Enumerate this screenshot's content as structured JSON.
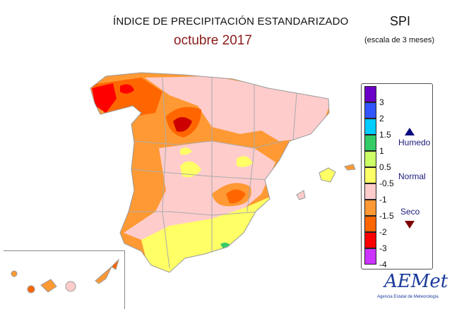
{
  "header": {
    "title": "ÍNDICE DE PRECIPITACIÓN ESTANDARIZADO",
    "subtitle": "octubre 2017",
    "index": "SPI",
    "scale_note": "(escala de 3 meses)"
  },
  "legend": {
    "classes": [
      {
        "range": ">3",
        "color": "#6a00c8"
      },
      {
        "range": "2 a 3",
        "color": "#3355ff"
      },
      {
        "range": "1.5 a 2",
        "color": "#00ccff"
      },
      {
        "range": "1 a 1.5",
        "color": "#33cc66"
      },
      {
        "range": "0.5 a 1",
        "color": "#ccff66"
      },
      {
        "range": "-0.5 a 0.5",
        "color": "#ffff66"
      },
      {
        "range": "-1 a -0.5",
        "color": "#ffcccc"
      },
      {
        "range": "-1.5 a -1",
        "color": "#ff9933"
      },
      {
        "range": "-2 a -1.5",
        "color": "#ff6600"
      },
      {
        "range": "-3 a -2",
        "color": "#ff0000"
      },
      {
        "range": "<-3",
        "color": "#cc33ff"
      }
    ],
    "ticks": [
      "3",
      "2",
      "1.5",
      "1",
      "0.5",
      "-0.5",
      "-1",
      "-1.5",
      "-2",
      "-3",
      "-4"
    ],
    "humid_label": "Humedo",
    "normal_label": "Normal",
    "dry_label": "Seco"
  },
  "logo": {
    "name": "AEMet",
    "full_name": "Agencia Estatal de Meteorología"
  }
}
